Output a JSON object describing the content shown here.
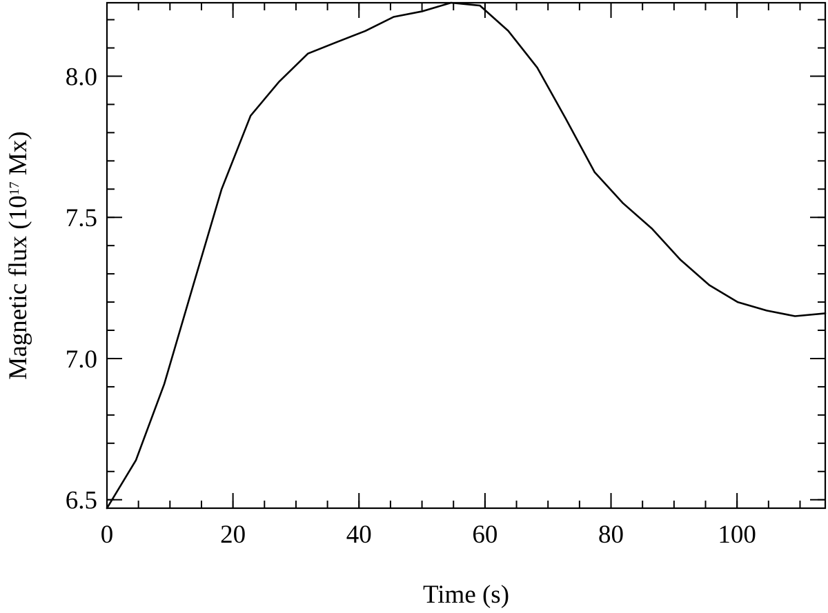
{
  "chart_data": {
    "type": "line",
    "title": "",
    "xlabel": "Time (s)",
    "ylabel": {
      "prefix": "Magnetic flux (10",
      "superscript": "17",
      "suffix": " Mx)"
    },
    "xlim": [
      0,
      114
    ],
    "ylim": [
      6.47,
      8.26
    ],
    "x_major_ticks": [
      0,
      20,
      40,
      60,
      80,
      100
    ],
    "x_tick_labels": [
      "0",
      "20",
      "40",
      "60",
      "80",
      "100"
    ],
    "x_minor_step": 5,
    "y_major_ticks": [
      6.5,
      7.0,
      7.5,
      8.0
    ],
    "y_tick_labels": [
      "6.5",
      "7.0",
      "7.5",
      "8.0"
    ],
    "y_minor_step": 0.1,
    "grid": false,
    "line_color": "#000000",
    "series": [
      {
        "x": [
          0,
          4.6,
          9.1,
          13.7,
          18.2,
          22.8,
          27.3,
          31.9,
          36.4,
          41,
          45.5,
          50.1,
          54.6,
          59.2,
          63.7,
          68.3,
          72.8,
          77.4,
          81.9,
          86.5,
          91,
          95.6,
          100.1,
          104.7,
          109.2,
          114
        ],
        "y": [
          6.47,
          6.64,
          6.91,
          7.26,
          7.6,
          7.86,
          7.98,
          8.08,
          8.12,
          8.16,
          8.21,
          8.23,
          8.26,
          8.25,
          8.16,
          8.03,
          7.85,
          7.66,
          7.55,
          7.46,
          7.35,
          7.26,
          7.2,
          7.17,
          7.15,
          7.16
        ]
      }
    ]
  }
}
